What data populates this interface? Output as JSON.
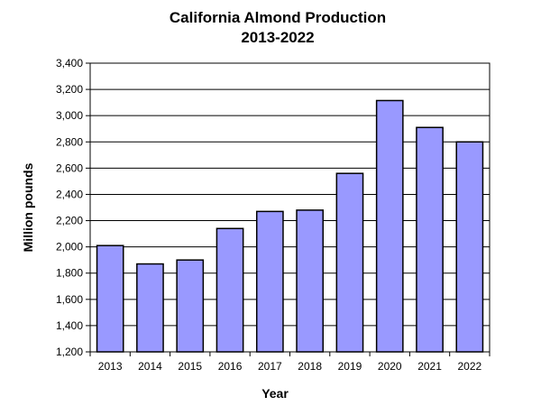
{
  "chart_data": {
    "type": "bar",
    "title_lines": [
      "California Almond Production",
      "2013-2022"
    ],
    "xlabel": "Year",
    "ylabel": "Million  pounds",
    "categories": [
      "2013",
      "2014",
      "2015",
      "2016",
      "2017",
      "2018",
      "2019",
      "2020",
      "2021",
      "2022"
    ],
    "values": [
      2010,
      1870,
      1900,
      2140,
      2270,
      2280,
      2560,
      3115,
      2910,
      2800
    ],
    "ylim": [
      1200,
      3400
    ],
    "yticks": [
      1200,
      1400,
      1600,
      1800,
      2000,
      2200,
      2400,
      2600,
      2800,
      3000,
      3200,
      3400
    ],
    "ytick_labels": [
      "1,200",
      "1,400",
      "1,600",
      "1,800",
      "2,000",
      "2,200",
      "2,400",
      "2,600",
      "2,800",
      "3,000",
      "3,200",
      "3,400"
    ],
    "grid": true,
    "legend": false,
    "colors": {
      "bar_fill": "#9999ff",
      "bar_stroke": "#000000",
      "grid": "#000000"
    }
  }
}
